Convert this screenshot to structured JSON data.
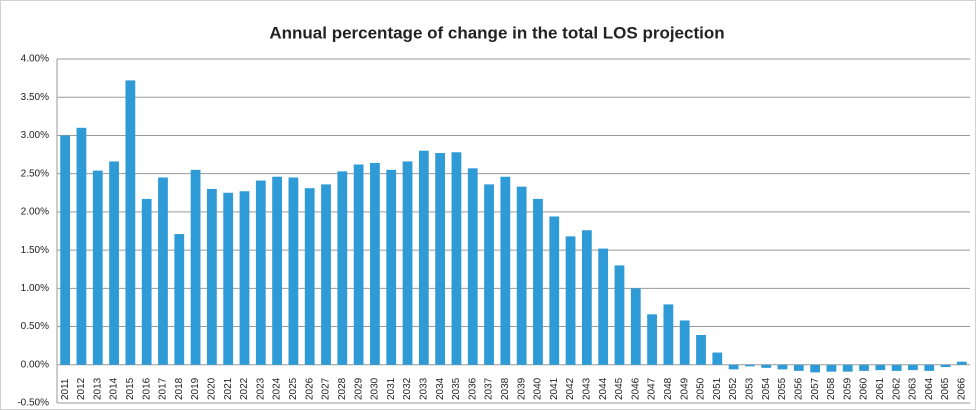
{
  "chart_data": {
    "type": "bar",
    "title": "Annual percentage of change in the total LOS projection",
    "categories": [
      "2011",
      "2012",
      "2013",
      "2014",
      "2015",
      "2016",
      "2017",
      "2018",
      "2019",
      "2020",
      "2021",
      "2022",
      "2023",
      "2024",
      "2025",
      "2026",
      "2027",
      "2028",
      "2029",
      "2030",
      "2031",
      "2032",
      "2033",
      "2034",
      "2035",
      "2036",
      "2037",
      "2038",
      "2039",
      "2040",
      "2041",
      "2042",
      "2043",
      "2044",
      "2045",
      "2046",
      "2047",
      "2048",
      "2049",
      "2050",
      "2051",
      "2052",
      "2053",
      "2054",
      "2055",
      "2056",
      "2057",
      "2058",
      "2059",
      "2060",
      "2061",
      "2062",
      "2063",
      "2064",
      "2065",
      "2066"
    ],
    "values": [
      3.0,
      3.1,
      2.54,
      2.66,
      3.72,
      2.17,
      2.45,
      1.71,
      2.55,
      2.3,
      2.25,
      2.27,
      2.41,
      2.46,
      2.45,
      2.31,
      2.36,
      2.53,
      2.62,
      2.64,
      2.55,
      2.66,
      2.8,
      2.77,
      2.78,
      2.57,
      2.36,
      2.46,
      2.33,
      2.17,
      1.94,
      1.68,
      1.76,
      1.52,
      1.3,
      1.0,
      0.66,
      0.79,
      0.58,
      0.39,
      0.16,
      -0.06,
      -0.02,
      -0.04,
      -0.06,
      -0.08,
      -0.1,
      -0.09,
      -0.09,
      -0.08,
      -0.07,
      -0.08,
      -0.07,
      -0.08,
      -0.03,
      0.04
    ],
    "color": "#2e9bd6",
    "ylim": [
      -0.5,
      4
    ],
    "yticks": [
      {
        "value": -0.5,
        "label": "-0.50%"
      },
      {
        "value": 0,
        "label": "0.00%"
      },
      {
        "value": 0.5,
        "label": "0.50%"
      },
      {
        "value": 1,
        "label": "1.00%"
      },
      {
        "value": 1.5,
        "label": "1.50%"
      },
      {
        "value": 2,
        "label": "2.00%"
      },
      {
        "value": 2.5,
        "label": "2.50%"
      },
      {
        "value": 3,
        "label": "3.00%"
      },
      {
        "value": 3.5,
        "label": "3.50%"
      },
      {
        "value": 4,
        "label": "4.00%"
      }
    ],
    "grid": true
  }
}
